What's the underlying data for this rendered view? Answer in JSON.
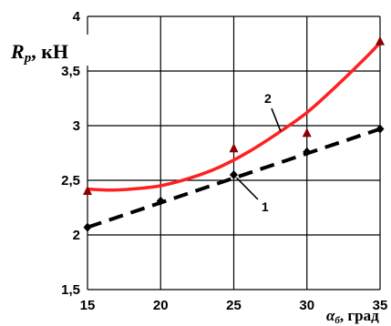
{
  "chart_data": {
    "type": "line",
    "ylabel_main": "R",
    "ylabel_sub": "p",
    "ylabel_unit": ", кН",
    "xlabel_main": "α",
    "xlabel_sub": "б",
    "xlabel_unit": ", град",
    "xlim": [
      15,
      35
    ],
    "ylim": [
      1.5,
      4
    ],
    "x_ticks": [
      "15",
      "20",
      "25",
      "30",
      "35"
    ],
    "y_ticks": [
      "1,5",
      "2",
      "2,5",
      "3",
      "3,5",
      "4"
    ],
    "grid": true,
    "series": [
      {
        "name": "1",
        "style": "dashed",
        "color": "#000000",
        "marker": "diamond",
        "points": [
          [
            15,
            2.07
          ],
          [
            20,
            2.31
          ],
          [
            25,
            2.55
          ],
          [
            30,
            2.76
          ],
          [
            35,
            2.97
          ]
        ],
        "fit": [
          [
            15,
            2.07
          ],
          [
            35,
            2.97
          ]
        ]
      },
      {
        "name": "2",
        "style": "solid",
        "color": "#ff2020",
        "marker": "triangle",
        "marker_color": "#8b0000",
        "points": [
          [
            15,
            2.4
          ],
          [
            25,
            2.79
          ],
          [
            30,
            2.93
          ],
          [
            35,
            3.77
          ]
        ],
        "fit": [
          [
            15,
            2.42
          ],
          [
            16.5,
            2.41
          ],
          [
            18,
            2.42
          ],
          [
            20,
            2.45
          ],
          [
            22,
            2.52
          ],
          [
            24,
            2.62
          ],
          [
            26,
            2.76
          ],
          [
            28,
            2.93
          ],
          [
            30,
            3.12
          ],
          [
            32,
            3.36
          ],
          [
            34,
            3.62
          ],
          [
            35,
            3.76
          ]
        ]
      }
    ],
    "annotations": [
      {
        "text": "1",
        "series": "1"
      },
      {
        "text": "2",
        "series": "2"
      }
    ]
  }
}
